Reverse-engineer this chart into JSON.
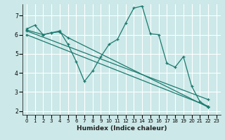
{
  "xlabel": "Humidex (Indice chaleur)",
  "background_color": "#cce8e8",
  "grid_color": "#ffffff",
  "line_color": "#1a7a6e",
  "ylim": [
    1.8,
    7.6
  ],
  "xlim": [
    -0.5,
    23.5
  ],
  "yticks": [
    2,
    3,
    4,
    5,
    6,
    7
  ],
  "xticks": [
    0,
    1,
    2,
    3,
    4,
    5,
    6,
    7,
    8,
    9,
    10,
    11,
    12,
    13,
    14,
    15,
    16,
    17,
    18,
    19,
    20,
    21,
    22,
    23
  ],
  "lines": [
    {
      "x": [
        0,
        1,
        2,
        3,
        4,
        5,
        6,
        7,
        8,
        9,
        10,
        11,
        12,
        13,
        14,
        15,
        16,
        17,
        18,
        19,
        20,
        21,
        22
      ],
      "y": [
        6.3,
        6.5,
        6.0,
        6.1,
        6.2,
        5.5,
        4.6,
        3.55,
        4.1,
        4.85,
        5.5,
        5.75,
        6.6,
        7.4,
        7.5,
        6.05,
        6.0,
        4.5,
        4.3,
        4.85,
        3.3,
        2.5,
        2.2
      ]
    },
    {
      "x": [
        0,
        2,
        3,
        4,
        5,
        22
      ],
      "y": [
        6.25,
        6.0,
        6.1,
        6.15,
        5.85,
        2.2
      ]
    },
    {
      "x": [
        0,
        22
      ],
      "y": [
        6.2,
        2.6
      ]
    },
    {
      "x": [
        0,
        22
      ],
      "y": [
        6.0,
        2.25
      ]
    }
  ]
}
